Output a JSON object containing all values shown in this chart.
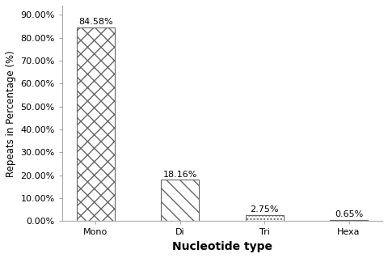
{
  "categories": [
    "Mono",
    "Di",
    "Tri",
    "Hexa"
  ],
  "values": [
    84.58,
    18.16,
    2.75,
    0.65
  ],
  "labels": [
    "84.58%",
    "18.16%",
    "2.75%",
    "0.65%"
  ],
  "hatch_patterns": [
    "xx",
    "\\\\\\\\",
    "....",
    ""
  ],
  "bar_facecolors": [
    "#ffffff",
    "#ffffff",
    "#ffffff",
    "#444444"
  ],
  "bar_edge_color": "#666666",
  "xlabel": "Nucleotide type",
  "ylabel": "Repeats in Percentage (%)",
  "yticks": [
    0,
    10,
    20,
    30,
    40,
    50,
    60,
    70,
    80,
    90
  ],
  "ytick_labels": [
    "0.00%",
    "10.00%",
    "20.00%",
    "30.00%",
    "40.00%",
    "50.00%",
    "60.00%",
    "70.00%",
    "80.00%",
    "90.00%"
  ],
  "ylim": [
    0,
    94
  ],
  "tick_fontsize": 8,
  "annotation_fontsize": 8,
  "xlabel_fontsize": 10,
  "ylabel_fontsize": 8.5,
  "bg_color": "#ffffff"
}
